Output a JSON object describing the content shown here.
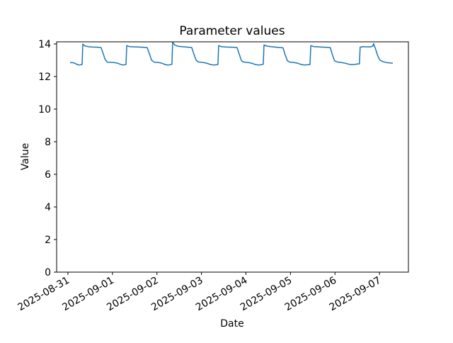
{
  "figure": {
    "background": "#ffffff",
    "text_color": "#000000",
    "spine_color": "#000000"
  },
  "chart_data": {
    "type": "line",
    "title": "Parameter values",
    "xlabel": "Date",
    "ylabel": "Value",
    "grid": false,
    "legend": null,
    "line_color": "#1f77b4",
    "line_width": 1.5,
    "x_unit": "days since 2025-08-31 00:00",
    "xlim_days": [
      -0.254,
      7.65
    ],
    "ylim": [
      0,
      14.13
    ],
    "y_ticks": [
      0,
      2,
      4,
      6,
      8,
      10,
      12,
      14
    ],
    "x_tick_positions_days": [
      0,
      1,
      2,
      3,
      4,
      5,
      6,
      7
    ],
    "x_tick_labels": [
      "2025-08-31",
      "2025-09-01",
      "2025-09-02",
      "2025-09-03",
      "2025-09-04",
      "2025-09-05",
      "2025-09-06",
      "2025-09-07"
    ],
    "x_tick_rotation_deg": 30,
    "series": [
      {
        "name": "Parameter value",
        "points": [
          [
            0.048,
            12.85
          ],
          [
            0.1,
            12.85
          ],
          [
            0.14,
            12.83
          ],
          [
            0.18,
            12.78
          ],
          [
            0.22,
            12.72
          ],
          [
            0.26,
            12.71
          ],
          [
            0.3,
            12.73
          ],
          [
            0.318,
            12.74
          ],
          [
            0.335,
            13.99
          ],
          [
            0.38,
            13.88
          ],
          [
            0.46,
            13.83
          ],
          [
            0.56,
            13.81
          ],
          [
            0.66,
            13.8
          ],
          [
            0.747,
            13.77
          ],
          [
            0.79,
            13.42
          ],
          [
            0.84,
            13.02
          ],
          [
            0.89,
            12.88
          ],
          [
            0.96,
            12.87
          ],
          [
            1.03,
            12.86
          ],
          [
            1.09,
            12.84
          ],
          [
            1.14,
            12.79
          ],
          [
            1.2,
            12.73
          ],
          [
            1.25,
            12.71
          ],
          [
            1.29,
            12.73
          ],
          [
            1.304,
            12.74
          ],
          [
            1.322,
            13.9
          ],
          [
            1.38,
            13.84
          ],
          [
            1.48,
            13.82
          ],
          [
            1.6,
            13.81
          ],
          [
            1.7,
            13.79
          ],
          [
            1.781,
            13.77
          ],
          [
            1.83,
            13.4
          ],
          [
            1.88,
            13.0
          ],
          [
            1.94,
            12.88
          ],
          [
            2.0,
            12.87
          ],
          [
            2.06,
            12.85
          ],
          [
            2.12,
            12.81
          ],
          [
            2.18,
            12.74
          ],
          [
            2.24,
            12.71
          ],
          [
            2.3,
            12.72
          ],
          [
            2.337,
            12.75
          ],
          [
            2.352,
            14.1
          ],
          [
            2.4,
            13.93
          ],
          [
            2.47,
            13.86
          ],
          [
            2.57,
            13.83
          ],
          [
            2.7,
            13.8
          ],
          [
            2.782,
            13.78
          ],
          [
            2.83,
            13.38
          ],
          [
            2.88,
            13.0
          ],
          [
            2.925,
            12.9
          ],
          [
            3.0,
            12.87
          ],
          [
            3.06,
            12.85
          ],
          [
            3.13,
            12.81
          ],
          [
            3.2,
            12.74
          ],
          [
            3.27,
            12.71
          ],
          [
            3.33,
            12.72
          ],
          [
            3.37,
            12.74
          ],
          [
            3.386,
            13.9
          ],
          [
            3.45,
            13.83
          ],
          [
            3.56,
            13.81
          ],
          [
            3.7,
            13.8
          ],
          [
            3.8,
            13.78
          ],
          [
            3.85,
            13.35
          ],
          [
            3.9,
            12.97
          ],
          [
            3.943,
            12.89
          ],
          [
            4.01,
            12.87
          ],
          [
            4.07,
            12.85
          ],
          [
            4.14,
            12.81
          ],
          [
            4.21,
            12.74
          ],
          [
            4.28,
            12.71
          ],
          [
            4.34,
            12.72
          ],
          [
            4.388,
            12.75
          ],
          [
            4.405,
            13.94
          ],
          [
            4.47,
            13.87
          ],
          [
            4.57,
            13.83
          ],
          [
            4.68,
            13.8
          ],
          [
            4.77,
            13.78
          ],
          [
            4.833,
            13.76
          ],
          [
            4.88,
            13.34
          ],
          [
            4.93,
            12.97
          ],
          [
            4.976,
            12.89
          ],
          [
            5.04,
            12.87
          ],
          [
            5.1,
            12.85
          ],
          [
            5.17,
            12.81
          ],
          [
            5.24,
            12.74
          ],
          [
            5.31,
            12.71
          ],
          [
            5.38,
            12.72
          ],
          [
            5.44,
            12.74
          ],
          [
            5.457,
            13.9
          ],
          [
            5.52,
            13.84
          ],
          [
            5.63,
            13.82
          ],
          [
            5.76,
            13.8
          ],
          [
            5.894,
            13.78
          ],
          [
            5.94,
            13.35
          ],
          [
            5.99,
            12.97
          ],
          [
            6.05,
            12.89
          ],
          [
            6.12,
            12.87
          ],
          [
            6.2,
            12.84
          ],
          [
            6.28,
            12.78
          ],
          [
            6.36,
            12.73
          ],
          [
            6.44,
            12.74
          ],
          [
            6.5,
            12.77
          ],
          [
            6.55,
            12.78
          ],
          [
            6.565,
            13.8
          ],
          [
            6.62,
            13.83
          ],
          [
            6.72,
            13.82
          ],
          [
            6.8,
            13.82
          ],
          [
            6.85,
            13.87
          ],
          [
            6.868,
            14.02
          ],
          [
            6.91,
            13.7
          ],
          [
            6.96,
            13.28
          ],
          [
            7.01,
            13.0
          ],
          [
            7.08,
            12.91
          ],
          [
            7.154,
            12.86
          ],
          [
            7.23,
            12.84
          ],
          [
            7.3,
            12.82
          ]
        ]
      }
    ]
  }
}
